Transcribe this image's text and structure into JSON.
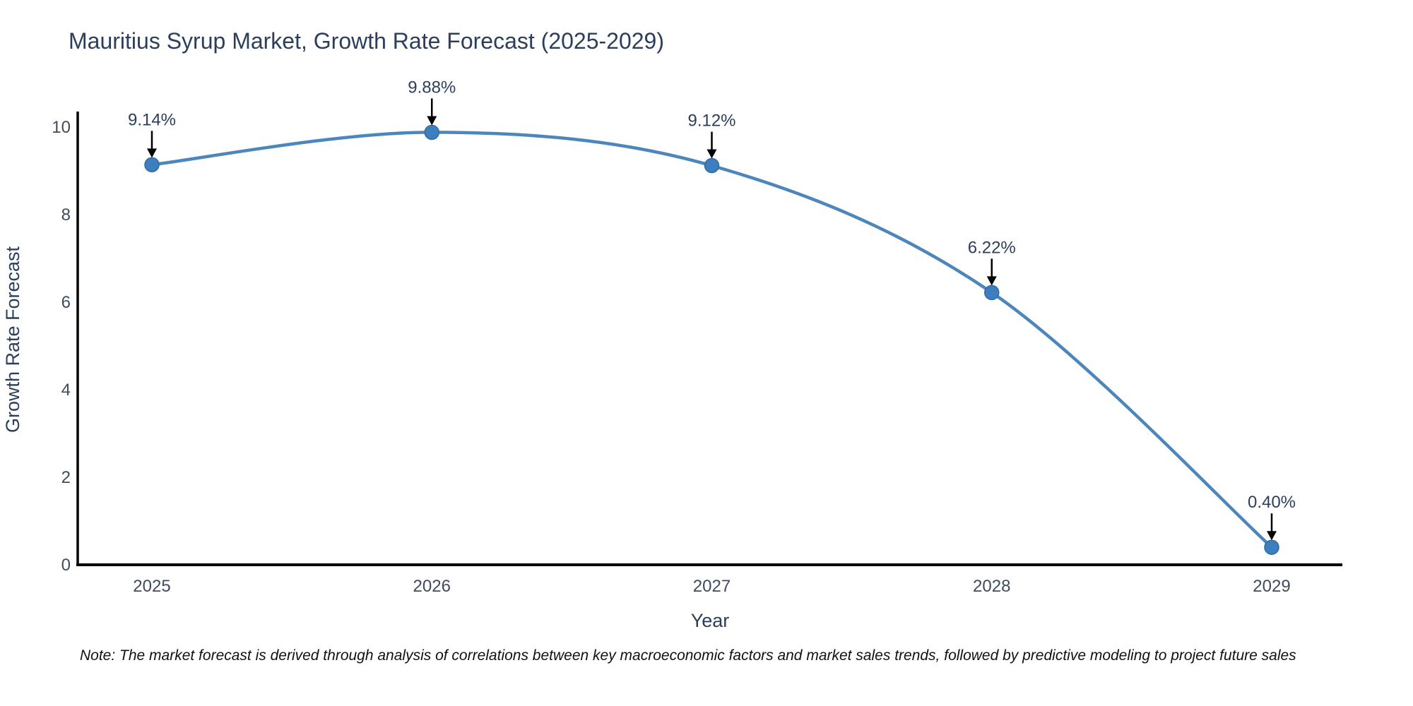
{
  "title": "Mauritius Syrup Market, Growth Rate Forecast (2025-2029)",
  "note": "Note: The market forecast is derived through analysis of correlations between key macroeconomic factors and market sales trends, followed by predictive modeling to project future sales",
  "chart_data": {
    "type": "line",
    "title": "Mauritius Syrup Market, Growth Rate Forecast (2025-2029)",
    "xlabel": "Year",
    "ylabel": "Growth Rate Forecast",
    "categories": [
      "2025",
      "2026",
      "2027",
      "2028",
      "2029"
    ],
    "values": [
      9.14,
      9.88,
      9.12,
      6.22,
      0.4
    ],
    "point_labels": [
      "9.14%",
      "9.88%",
      "9.12%",
      "6.22%",
      "0.40%"
    ],
    "ylim": [
      0,
      10
    ],
    "yticks": [
      0,
      2,
      4,
      6,
      8,
      10
    ],
    "grid": false,
    "legend_position": "none",
    "line_smooth": true,
    "colors": {
      "line": "#4c86ba",
      "marker_fill": "#3d7ebf",
      "marker_edge": "#2f6ba4",
      "annotation_arrow": "#000000",
      "annotation_text": "#2b3f5c",
      "axis_line": "#000000",
      "tick_text": "#3f4c5d",
      "axis_title_text": "#2b3f5c"
    }
  }
}
